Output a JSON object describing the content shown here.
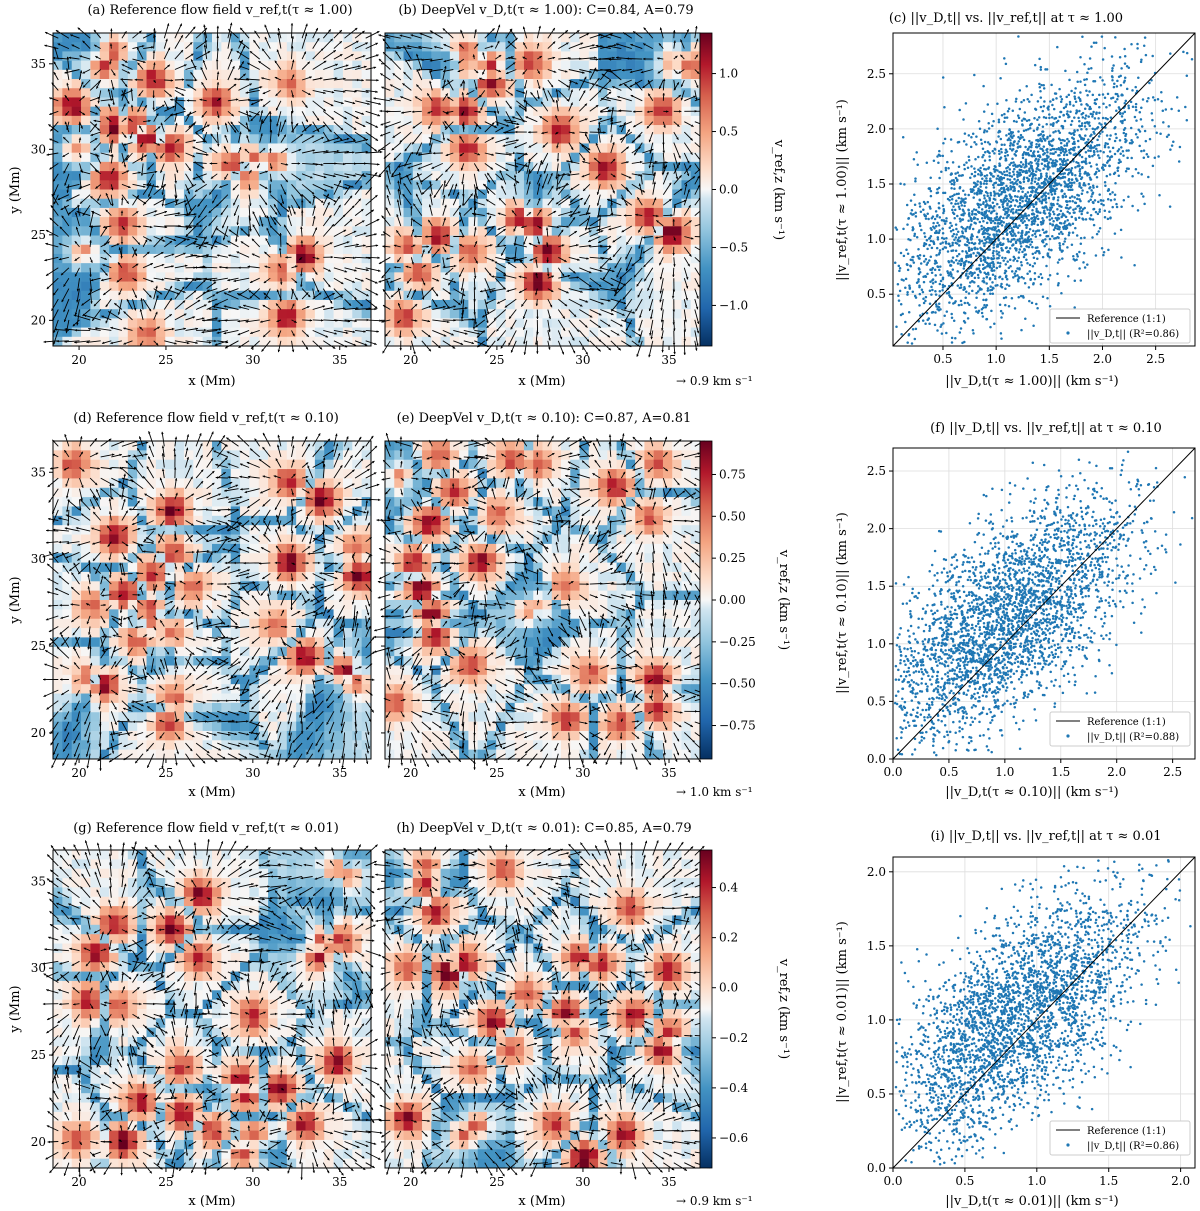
{
  "figure": {
    "rows": [
      {
        "panel_a_title": "(a) Reference flow field v_ref,t(τ ≈ 1.00)",
        "panel_b_title": "(b) DeepVel v_D,t(τ ≈ 1.00): C=0.84, A=0.79",
        "panel_c_title": "(c) ||v_D,t|| vs. ||v_ref,t|| at τ ≈ 1.00",
        "cbar_label": "v_ref,z (km s⁻¹)",
        "cbar_ticks": [
          "1.0",
          "0.5",
          "0.0",
          "−0.5",
          "−1.0"
        ],
        "cbar_tick_values": [
          1.0,
          0.5,
          0.0,
          -0.5,
          -1.0
        ],
        "cbar_range": [
          -1.35,
          1.35
        ],
        "quiver_key": "→ 0.9 km s⁻¹",
        "scatter_xlabel": "||v_D,t(τ ≈ 1.00)|| (km s⁻¹)",
        "scatter_ylabel": "||v_ref,t(τ ≈ 1.00)|| (km s⁻¹)",
        "legend_line": "Reference (1:1)",
        "legend_points": "||v_D,t|| (R²=0.86)"
      },
      {
        "panel_a_title": "(d) Reference flow field v_ref,t(τ ≈ 0.10)",
        "panel_b_title": "(e) DeepVel v_D,t(τ ≈ 0.10): C=0.87, A=0.81",
        "panel_c_title": "(f) ||v_D,t|| vs. ||v_ref,t|| at τ ≈ 0.10",
        "cbar_label": "v_ref,z (km s⁻¹)",
        "cbar_ticks": [
          "0.75",
          "0.50",
          "0.25",
          "0.00",
          "−0.25",
          "−0.50",
          "−0.75"
        ],
        "cbar_tick_values": [
          0.75,
          0.5,
          0.25,
          0.0,
          -0.25,
          -0.5,
          -0.75
        ],
        "cbar_range": [
          -0.95,
          0.95
        ],
        "quiver_key": "→ 1.0 km s⁻¹",
        "scatter_xlabel": "||v_D,t(τ ≈ 0.10)|| (km s⁻¹)",
        "scatter_ylabel": "||v_ref,t(τ ≈ 0.10)|| (km s⁻¹)",
        "legend_line": "Reference (1:1)",
        "legend_points": "||v_D,t|| (R²=0.88)"
      },
      {
        "panel_a_title": "(g) Reference flow field v_ref,t(τ ≈ 0.01)",
        "panel_b_title": "(h) DeepVel v_D,t(τ ≈ 0.01): C=0.85, A=0.79",
        "panel_c_title": "(i) ||v_D,t|| vs. ||v_ref,t|| at τ ≈ 0.01",
        "cbar_label": "v_ref,z (km s⁻¹)",
        "cbar_ticks": [
          "0.4",
          "0.2",
          "0.0",
          "−0.2",
          "−0.4",
          "−0.6"
        ],
        "cbar_tick_values": [
          0.4,
          0.2,
          0.0,
          -0.2,
          -0.4,
          -0.6
        ],
        "cbar_range": [
          -0.72,
          0.55
        ],
        "quiver_key": "→ 0.9 km s⁻¹",
        "scatter_xlabel": "||v_D,t(τ ≈ 0.01)|| (km s⁻¹)",
        "scatter_ylabel": "||v_ref,t(τ ≈ 0.01)|| (km s⁻¹)",
        "legend_line": "Reference (1:1)",
        "legend_points": "||v_D,t|| (R²=0.86)"
      }
    ],
    "map_xlabel": "x (Mm)",
    "map_ylabel": "y (Mm)",
    "map_xticks": [
      20,
      25,
      30,
      35
    ],
    "map_yticks": [
      20,
      25,
      30,
      35
    ],
    "colors": {
      "cmap_low": "#053061",
      "cmap_mid": "#f7f7f7",
      "cmap_high": "#67001f",
      "scatter_point": "#1f77b4",
      "reference_line": "#000000",
      "grid": "#d9d9d9"
    }
  },
  "chart_data": [
    {
      "type": "heatmap",
      "title": "(a) Reference flow field v_ref,t(τ ≈ 1.00)",
      "xlabel": "x (Mm)",
      "ylabel": "y (Mm)",
      "xlim": [
        18.5,
        36.8
      ],
      "ylim": [
        18.5,
        36.8
      ],
      "xticks": [
        20,
        25,
        30,
        35
      ],
      "yticks": [
        20,
        25,
        30,
        35
      ],
      "colorbar": {
        "label": "v_ref,z (km s⁻¹)",
        "range": [
          -1.35,
          1.35
        ]
      },
      "quiver_key": "→ 0.9 km s⁻¹"
    },
    {
      "type": "heatmap",
      "title": "(b) DeepVel v_D,t(τ ≈ 1.00): C=0.84, A=0.79",
      "xlabel": "x (Mm)",
      "xlim": [
        18.5,
        36.8
      ],
      "ylim": [
        18.5,
        36.8
      ],
      "xticks": [
        20,
        25,
        30,
        35
      ],
      "C": 0.84,
      "A": 0.79
    },
    {
      "type": "scatter",
      "title": "(c) ||v_D,t|| vs. ||v_ref,t|| at τ ≈ 1.00",
      "xlabel": "||v_D,t(τ ≈ 1.00)|| (km s⁻¹)",
      "ylabel": "||v_ref,t(τ ≈ 1.00)|| (km s⁻¹)",
      "xlim": [
        0.03,
        2.87
      ],
      "ylim": [
        0.03,
        2.87
      ],
      "xticks": [
        0.5,
        1.0,
        1.5,
        2.0,
        2.5
      ],
      "yticks": [
        0.5,
        1.0,
        1.5,
        2.0,
        2.5
      ],
      "grid": true,
      "legend_placement": "bottom-right",
      "series": [
        {
          "name": "Reference (1:1)",
          "kind": "line",
          "x": [
            0.03,
            2.87
          ],
          "y": [
            0.03,
            2.87
          ]
        },
        {
          "name": "||v_D,t|| (R²=0.86)",
          "kind": "scatter",
          "point_count_approx": 3000,
          "x_center": 1.2,
          "y_center": 1.35,
          "r2": 0.86
        }
      ]
    },
    {
      "type": "heatmap",
      "title": "(d) Reference flow field v_ref,t(τ ≈ 0.10)",
      "xlabel": "x (Mm)",
      "ylabel": "y (Mm)",
      "xlim": [
        18.5,
        36.8
      ],
      "ylim": [
        18.5,
        36.8
      ],
      "xticks": [
        20,
        25,
        30,
        35
      ],
      "yticks": [
        20,
        25,
        30,
        35
      ],
      "colorbar": {
        "label": "v_ref,z (km s⁻¹)",
        "range": [
          -0.95,
          0.95
        ]
      },
      "quiver_key": "→ 1.0 km s⁻¹"
    },
    {
      "type": "heatmap",
      "title": "(e) DeepVel v_D,t(τ ≈ 0.10): C=0.87, A=0.81",
      "xlabel": "x (Mm)",
      "xlim": [
        18.5,
        36.8
      ],
      "ylim": [
        18.5,
        36.8
      ],
      "xticks": [
        20,
        25,
        30,
        35
      ],
      "C": 0.87,
      "A": 0.81
    },
    {
      "type": "scatter",
      "title": "(f) ||v_D,t|| vs. ||v_ref,t|| at τ ≈ 0.10",
      "xlabel": "||v_D,t(τ ≈ 0.10)|| (km s⁻¹)",
      "ylabel": "||v_ref,t(τ ≈ 0.10)|| (km s⁻¹)",
      "xlim": [
        0.0,
        2.7
      ],
      "ylim": [
        0.0,
        2.7
      ],
      "xticks": [
        0.0,
        0.5,
        1.0,
        1.5,
        2.0,
        2.5
      ],
      "yticks": [
        0.0,
        0.5,
        1.0,
        1.5,
        2.0,
        2.5
      ],
      "grid": true,
      "legend_placement": "bottom-right",
      "series": [
        {
          "name": "Reference (1:1)",
          "kind": "line",
          "x": [
            0.0,
            2.7
          ],
          "y": [
            0.0,
            2.7
          ]
        },
        {
          "name": "||v_D,t|| (R²=0.88)",
          "kind": "scatter",
          "point_count_approx": 3000,
          "x_center": 1.0,
          "y_center": 1.2,
          "r2": 0.88
        }
      ]
    },
    {
      "type": "heatmap",
      "title": "(g) Reference flow field v_ref,t(τ ≈ 0.01)",
      "xlabel": "x (Mm)",
      "ylabel": "y (Mm)",
      "xlim": [
        18.5,
        36.8
      ],
      "ylim": [
        18.5,
        36.8
      ],
      "xticks": [
        20,
        25,
        30,
        35
      ],
      "yticks": [
        20,
        25,
        30,
        35
      ],
      "colorbar": {
        "label": "v_ref,z (km s⁻¹)",
        "range": [
          -0.72,
          0.55
        ]
      },
      "quiver_key": "→ 0.9 km s⁻¹"
    },
    {
      "type": "heatmap",
      "title": "(h) DeepVel v_D,t(τ ≈ 0.01): C=0.85, A=0.79",
      "xlabel": "x (Mm)",
      "xlim": [
        18.5,
        36.8
      ],
      "ylim": [
        18.5,
        36.8
      ],
      "xticks": [
        20,
        25,
        30,
        35
      ],
      "C": 0.85,
      "A": 0.79
    },
    {
      "type": "scatter",
      "title": "(i) ||v_D,t|| vs. ||v_ref,t|| at τ ≈ 0.01",
      "xlabel": "||v_D,t(τ ≈ 0.01)|| (km s⁻¹)",
      "ylabel": "||v_ref,t(τ ≈ 0.01)|| (km s⁻¹)",
      "xlim": [
        0.0,
        2.1
      ],
      "ylim": [
        0.0,
        2.1
      ],
      "xticks": [
        0.0,
        0.5,
        1.0,
        1.5,
        2.0
      ],
      "yticks": [
        0.0,
        0.5,
        1.0,
        1.5,
        2.0
      ],
      "grid": true,
      "legend_placement": "bottom-right",
      "series": [
        {
          "name": "Reference (1:1)",
          "kind": "line",
          "x": [
            0.0,
            2.1
          ],
          "y": [
            0.0,
            2.1
          ]
        },
        {
          "name": "||v_D,t|| (R²=0.86)",
          "kind": "scatter",
          "point_count_approx": 3000,
          "x_center": 0.85,
          "y_center": 1.0,
          "r2": 0.86
        }
      ]
    }
  ]
}
